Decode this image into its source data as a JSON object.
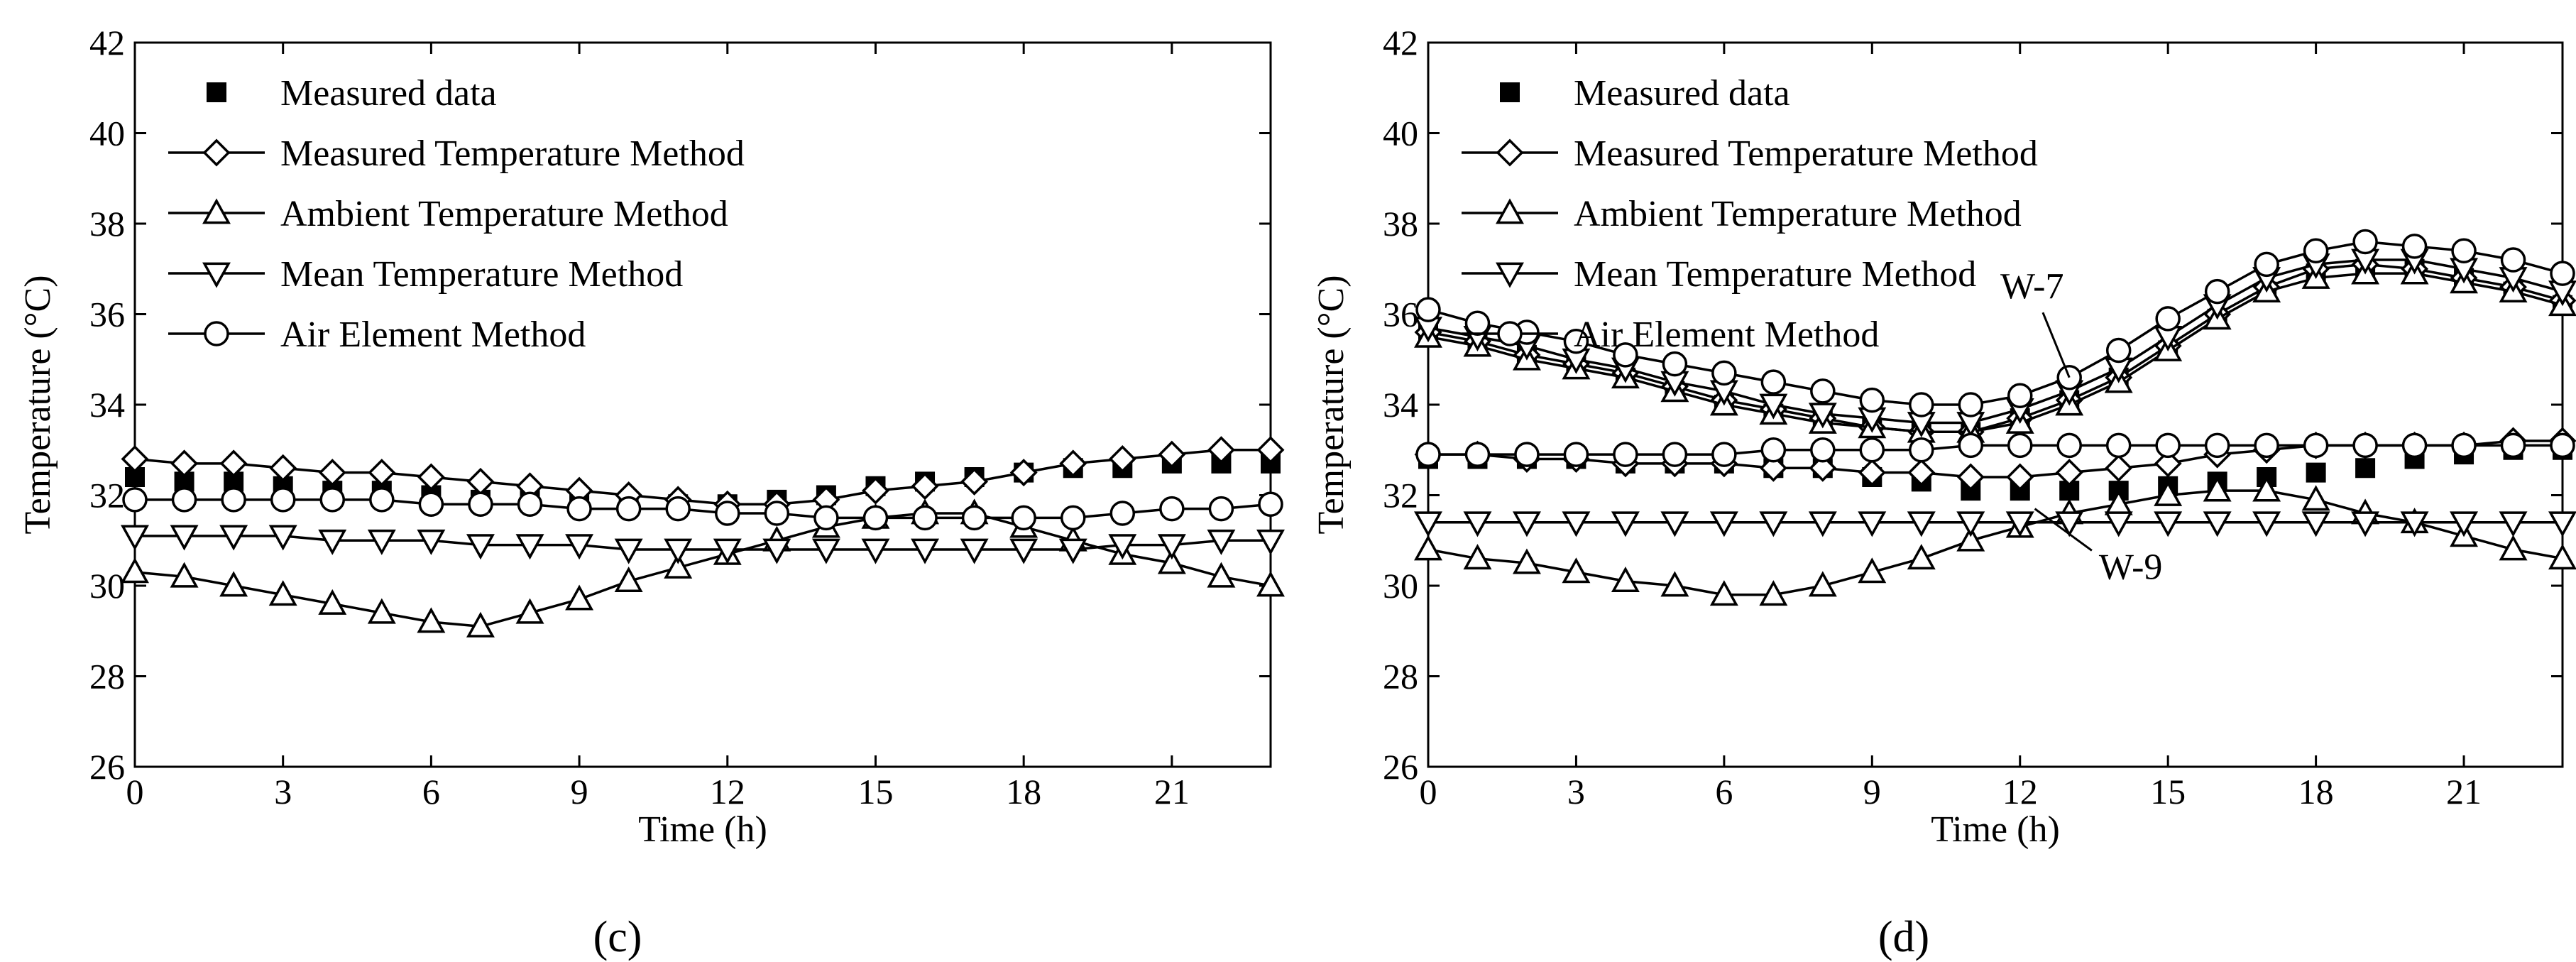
{
  "figure": {
    "panel_labels": [
      "(c)",
      "(d)"
    ],
    "legend_entries": [
      "Measured data",
      "Measured Temperature Method",
      "Ambient Temperature Method",
      "Mean Temperature Method",
      "Air Element Method"
    ]
  },
  "chart_data": [
    {
      "type": "line",
      "panel": "(c)",
      "title": "",
      "xlabel": "Time (h)",
      "ylabel": "Temperature (°C)",
      "xlim": [
        0,
        23
      ],
      "ylim": [
        26,
        42
      ],
      "xticks": [
        0,
        3,
        6,
        9,
        12,
        15,
        18,
        21
      ],
      "yticks": [
        26,
        28,
        30,
        32,
        34,
        36,
        38,
        40,
        42
      ],
      "legend": "top-left",
      "x": [
        0,
        1,
        2,
        3,
        4,
        5,
        6,
        7,
        8,
        9,
        10,
        11,
        12,
        13,
        14,
        15,
        16,
        17,
        18,
        19,
        20,
        21,
        22,
        23
      ],
      "series": [
        {
          "name": "Measured data",
          "marker": "square",
          "values": [
            32.4,
            32.3,
            32.3,
            32.2,
            32.1,
            32.1,
            32.0,
            31.9,
            31.9,
            31.9,
            31.8,
            31.8,
            31.8,
            31.9,
            32.0,
            32.2,
            32.3,
            32.4,
            32.5,
            32.6,
            32.6,
            32.7,
            32.7,
            32.7
          ]
        },
        {
          "name": "Measured Temperature Method",
          "marker": "diamond",
          "values": [
            32.8,
            32.7,
            32.7,
            32.6,
            32.5,
            32.5,
            32.4,
            32.3,
            32.2,
            32.1,
            32.0,
            31.9,
            31.8,
            31.8,
            31.9,
            32.1,
            32.2,
            32.3,
            32.5,
            32.7,
            32.8,
            32.9,
            33.0,
            33.0
          ]
        },
        {
          "name": "Ambient Temperature Method",
          "marker": "triangle-up",
          "values": [
            30.3,
            30.2,
            30.0,
            29.8,
            29.6,
            29.4,
            29.2,
            29.1,
            29.4,
            29.7,
            30.1,
            30.4,
            30.7,
            31.0,
            31.3,
            31.5,
            31.6,
            31.6,
            31.3,
            31.0,
            30.7,
            30.5,
            30.2,
            30.0
          ]
        },
        {
          "name": "Mean Temperature Method",
          "marker": "triangle-down",
          "values": [
            31.1,
            31.1,
            31.1,
            31.1,
            31.0,
            31.0,
            31.0,
            30.9,
            30.9,
            30.9,
            30.8,
            30.8,
            30.8,
            30.8,
            30.8,
            30.8,
            30.8,
            30.8,
            30.8,
            30.8,
            30.9,
            30.9,
            31.0,
            31.0
          ]
        },
        {
          "name": "Air Element Method",
          "marker": "circle",
          "values": [
            31.9,
            31.9,
            31.9,
            31.9,
            31.9,
            31.9,
            31.8,
            31.8,
            31.8,
            31.7,
            31.7,
            31.7,
            31.6,
            31.6,
            31.5,
            31.5,
            31.5,
            31.5,
            31.5,
            31.5,
            31.6,
            31.7,
            31.7,
            31.8
          ]
        }
      ],
      "annotations": []
    },
    {
      "type": "line",
      "panel": "(d)",
      "title": "",
      "xlabel": "Time (h)",
      "ylabel": "Temperature (°C)",
      "xlim": [
        0,
        23
      ],
      "ylim": [
        26,
        42
      ],
      "xticks": [
        0,
        3,
        6,
        9,
        12,
        15,
        18,
        21
      ],
      "yticks": [
        26,
        28,
        30,
        32,
        34,
        36,
        38,
        40,
        42
      ],
      "legend": "top-left",
      "x": [
        0,
        1,
        2,
        3,
        4,
        5,
        6,
        7,
        8,
        9,
        10,
        11,
        12,
        13,
        14,
        15,
        16,
        17,
        18,
        19,
        20,
        21,
        22,
        23
      ],
      "series": [
        {
          "name": "Measured data (W-7)",
          "marker": "square",
          "values": [
            35.6,
            35.4,
            35.1,
            34.9,
            34.6,
            34.3,
            34.0,
            33.8,
            33.7,
            33.5,
            33.4,
            33.4,
            33.7,
            34.1,
            34.6,
            35.2,
            35.9,
            36.5,
            36.9,
            37.0,
            37.0,
            36.8,
            36.5,
            36.2
          ]
        },
        {
          "name": "Measured Temperature Method (W-7)",
          "marker": "diamond",
          "values": [
            35.6,
            35.4,
            35.1,
            34.9,
            34.7,
            34.4,
            34.1,
            33.9,
            33.7,
            33.5,
            33.4,
            33.4,
            33.7,
            34.1,
            34.6,
            35.3,
            36.0,
            36.6,
            37.0,
            37.1,
            37.0,
            36.8,
            36.6,
            36.3
          ]
        },
        {
          "name": "Ambient Temperature Method (W-7)",
          "marker": "triangle-up",
          "values": [
            35.5,
            35.3,
            35.0,
            34.8,
            34.6,
            34.3,
            34.0,
            33.8,
            33.6,
            33.5,
            33.4,
            33.4,
            33.6,
            34.0,
            34.5,
            35.2,
            35.9,
            36.5,
            36.8,
            36.9,
            36.9,
            36.7,
            36.5,
            36.2
          ]
        },
        {
          "name": "Mean Temperature Method (W-7)",
          "marker": "triangle-down",
          "values": [
            35.7,
            35.5,
            35.3,
            35.0,
            34.8,
            34.5,
            34.3,
            34.0,
            33.8,
            33.7,
            33.6,
            33.6,
            33.9,
            34.3,
            34.8,
            35.5,
            36.2,
            36.8,
            37.1,
            37.2,
            37.2,
            37.0,
            36.8,
            36.5
          ]
        },
        {
          "name": "Air Element Method (W-7)",
          "marker": "circle",
          "values": [
            36.1,
            35.8,
            35.6,
            35.4,
            35.1,
            34.9,
            34.7,
            34.5,
            34.3,
            34.1,
            34.0,
            34.0,
            34.2,
            34.6,
            35.2,
            35.9,
            36.5,
            37.1,
            37.4,
            37.6,
            37.5,
            37.4,
            37.2,
            36.9
          ]
        },
        {
          "name": "Measured data (W-9)",
          "marker": "square",
          "values": [
            32.8,
            32.8,
            32.8,
            32.8,
            32.7,
            32.7,
            32.7,
            32.6,
            32.6,
            32.4,
            32.3,
            32.1,
            32.1,
            32.1,
            32.1,
            32.2,
            32.3,
            32.4,
            32.5,
            32.6,
            32.8,
            32.9,
            33.0,
            33.0
          ]
        },
        {
          "name": "Measured Temperature Method (W-9)",
          "marker": "diamond",
          "values": [
            32.9,
            32.9,
            32.8,
            32.8,
            32.7,
            32.7,
            32.7,
            32.6,
            32.6,
            32.5,
            32.5,
            32.4,
            32.4,
            32.5,
            32.6,
            32.7,
            32.9,
            33.0,
            33.1,
            33.1,
            33.1,
            33.1,
            33.2,
            33.2
          ]
        },
        {
          "name": "Ambient Temperature Method (W-9)",
          "marker": "triangle-up",
          "values": [
            30.8,
            30.6,
            30.5,
            30.3,
            30.1,
            30.0,
            29.8,
            29.8,
            30.0,
            30.3,
            30.6,
            31.0,
            31.3,
            31.6,
            31.8,
            32.0,
            32.1,
            32.1,
            31.9,
            31.6,
            31.4,
            31.1,
            30.8,
            30.6
          ]
        },
        {
          "name": "Mean Temperature Method (W-9)",
          "marker": "triangle-down",
          "values": [
            31.4,
            31.4,
            31.4,
            31.4,
            31.4,
            31.4,
            31.4,
            31.4,
            31.4,
            31.4,
            31.4,
            31.4,
            31.4,
            31.4,
            31.4,
            31.4,
            31.4,
            31.4,
            31.4,
            31.4,
            31.4,
            31.4,
            31.4,
            31.4
          ]
        },
        {
          "name": "Air Element Method (W-9)",
          "marker": "circle",
          "values": [
            32.9,
            32.9,
            32.9,
            32.9,
            32.9,
            32.9,
            32.9,
            33.0,
            33.0,
            33.0,
            33.0,
            33.1,
            33.1,
            33.1,
            33.1,
            33.1,
            33.1,
            33.1,
            33.1,
            33.1,
            33.1,
            33.1,
            33.1,
            33.1
          ]
        }
      ],
      "annotations": [
        {
          "text": "W-7",
          "x": 13,
          "y": 34.6,
          "text_x": 11.6,
          "text_y": 36.35
        },
        {
          "text": "W-9",
          "x": 12.3,
          "y": 31.7,
          "text_x": 13.6,
          "text_y": 30.15
        }
      ]
    }
  ]
}
